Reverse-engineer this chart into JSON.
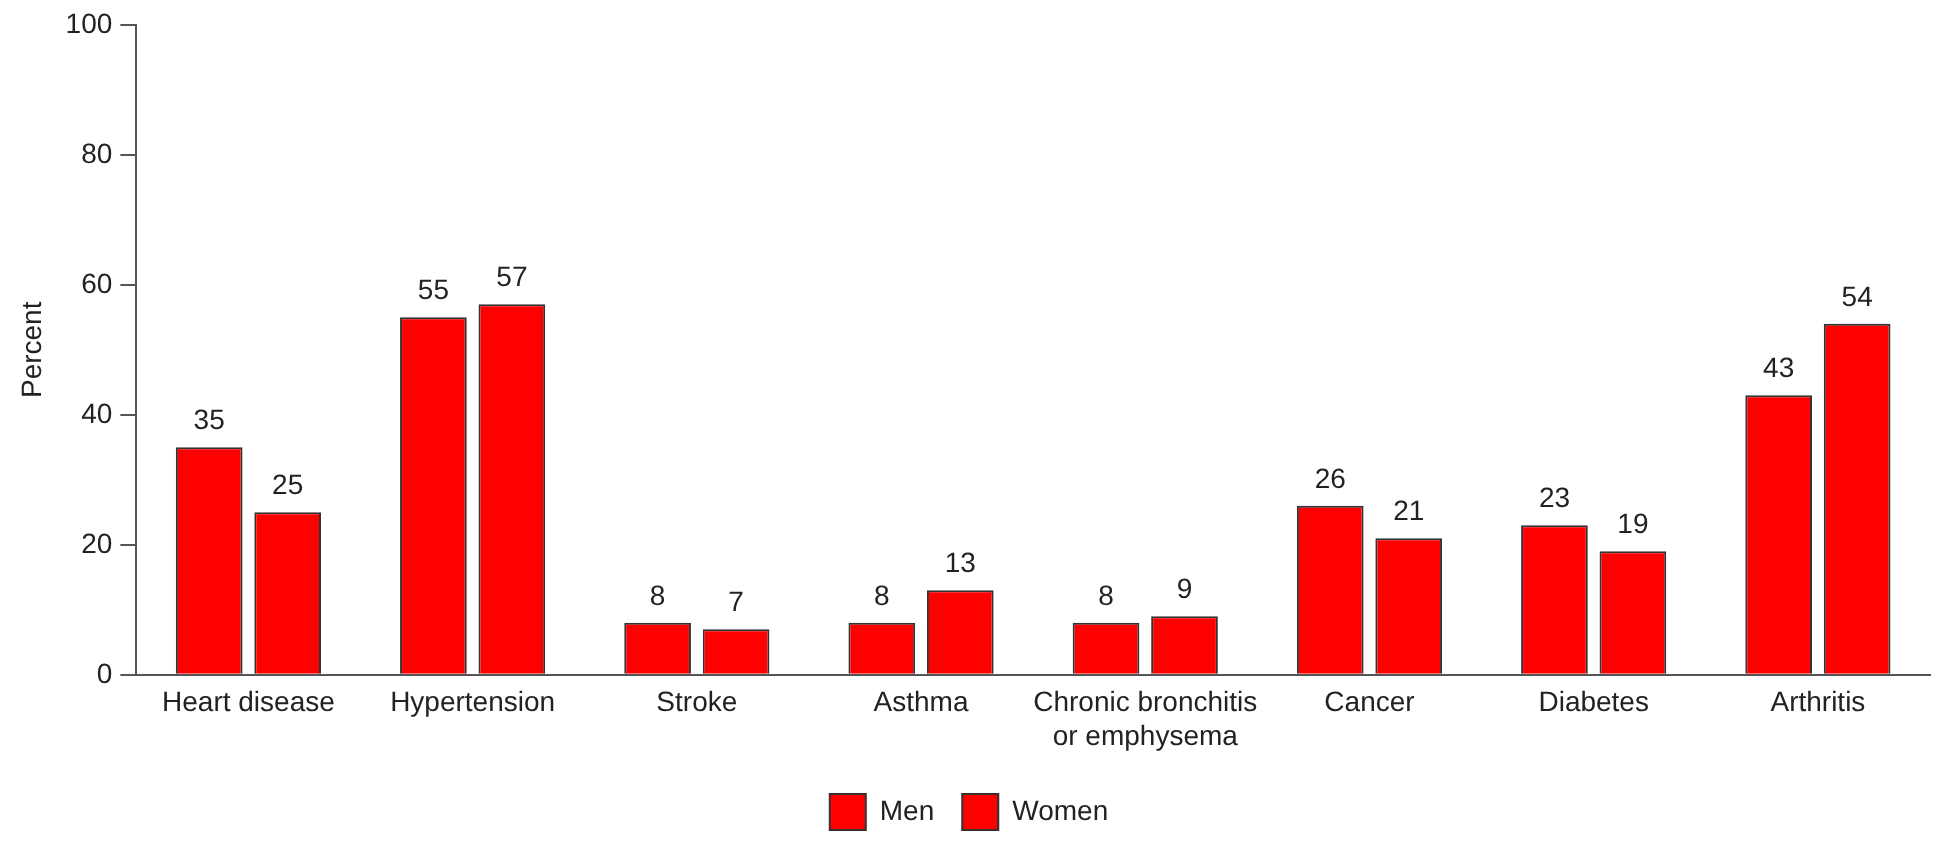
{
  "chart_data": {
    "type": "bar",
    "ylabel": "Percent",
    "categories": [
      "Heart disease",
      "Hypertension",
      "Stroke",
      "Asthma",
      "Chronic bronchitis\nor emphysema",
      "Cancer",
      "Diabetes",
      "Arthritis"
    ],
    "series": [
      {
        "name": "Men",
        "color": "#ff0000",
        "values": [
          35,
          55,
          8,
          8,
          8,
          26,
          23,
          43
        ]
      },
      {
        "name": "Women",
        "color": "#ff0000",
        "values": [
          25,
          57,
          7,
          13,
          9,
          21,
          19,
          54
        ]
      }
    ],
    "ylim": [
      0,
      100
    ],
    "yticks": [
      0,
      20,
      40,
      60,
      80,
      100
    ],
    "grid": false,
    "legend": "bottom",
    "data_labels": true
  }
}
